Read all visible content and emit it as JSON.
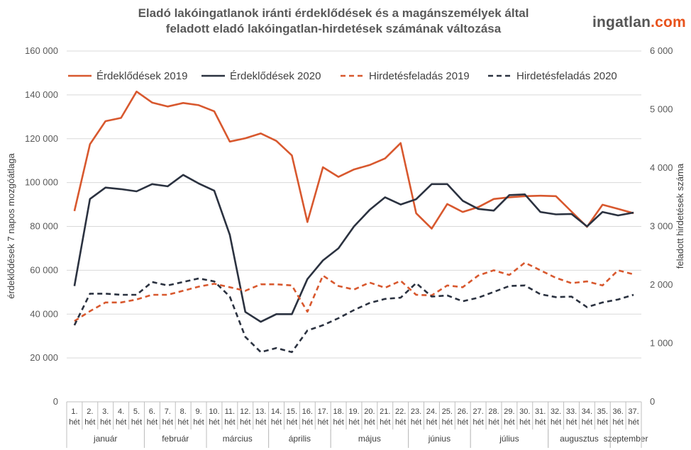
{
  "header": {
    "title_line1": "Eladó lakóingatlanok iránti érdeklődések és a magánszemélyek által",
    "title_line2": "feladott eladó lakóingatlan-hirdetések számának változása",
    "brand_main": "ingatlan",
    "brand_suffix": ".com"
  },
  "colors": {
    "orange": "#d8582e",
    "navy": "#2b3240",
    "grid": "#d9d9d9"
  },
  "chart_data": {
    "type": "line",
    "ylabel": "érdeklődések 7 napos mozgóátlaga",
    "y2label": "feladott hirdetések száma",
    "ylim": [
      0,
      160000
    ],
    "y2lim": [
      0,
      6000
    ],
    "yticks": [
      "0",
      "20 000",
      "40 000",
      "60 000",
      "80 000",
      "100 000",
      "120 000",
      "140 000",
      "160 000"
    ],
    "y2ticks": [
      "0",
      "1 000",
      "2 000",
      "3 000",
      "4 000",
      "5 000",
      "6 000"
    ],
    "grid": true,
    "legend_position": "top",
    "categories": [
      "1.",
      "2.",
      "3.",
      "4.",
      "5.",
      "6.",
      "7.",
      "8.",
      "9.",
      "10.",
      "11.",
      "12.",
      "13.",
      "14.",
      "15.",
      "16.",
      "17.",
      "18.",
      "19.",
      "20.",
      "21.",
      "22.",
      "23.",
      "24.",
      "25.",
      "26.",
      "27.",
      "28.",
      "29.",
      "30.",
      "31.",
      "32.",
      "33.",
      "34.",
      "35.",
      "36.",
      "37."
    ],
    "category_suffix": "hét",
    "months": [
      {
        "label": "január",
        "start": 0,
        "end": 4
      },
      {
        "label": "február",
        "start": 5,
        "end": 8
      },
      {
        "label": "március",
        "start": 9,
        "end": 12
      },
      {
        "label": "április",
        "start": 13,
        "end": 16
      },
      {
        "label": "május",
        "start": 17,
        "end": 21
      },
      {
        "label": "június",
        "start": 22,
        "end": 25
      },
      {
        "label": "július",
        "start": 26,
        "end": 30
      },
      {
        "label": "augusztus",
        "start": 31,
        "end": 34
      },
      {
        "label": "szeptember",
        "start": 35,
        "end": 36
      }
    ],
    "series": [
      {
        "name": "Érdeklődések 2019",
        "axis": "left",
        "style": "solid",
        "color": "#d8582e",
        "values": [
          87000,
          117500,
          128000,
          129500,
          141500,
          136500,
          134700,
          136300,
          135300,
          132500,
          118700,
          120200,
          122400,
          119000,
          112400,
          82000,
          107000,
          102600,
          106000,
          108000,
          111000,
          118000,
          86000,
          79000,
          90200,
          86600,
          88800,
          92500,
          93300,
          93800,
          94000,
          93800,
          86800,
          79800,
          89900,
          88000,
          86000
        ]
      },
      {
        "name": "Érdeklődések 2020",
        "axis": "left",
        "style": "solid",
        "color": "#2b3240",
        "values": [
          52800,
          92500,
          97700,
          97000,
          96000,
          99300,
          98300,
          103500,
          99600,
          96300,
          76200,
          41000,
          36500,
          40000,
          40000,
          56000,
          64500,
          70000,
          80000,
          87500,
          93300,
          90000,
          92400,
          99300,
          99300,
          91700,
          88000,
          87200,
          94300,
          94600,
          86600,
          85500,
          85700,
          80000,
          86600,
          85000,
          86300
        ]
      },
      {
        "name": "Hirdetésfeladás 2019",
        "axis": "right",
        "style": "dashed",
        "color": "#d8582e",
        "values": [
          1380,
          1550,
          1700,
          1700,
          1750,
          1830,
          1830,
          1900,
          1970,
          2020,
          1960,
          1900,
          2010,
          2010,
          1990,
          1540,
          2160,
          1980,
          1920,
          2040,
          1950,
          2070,
          1830,
          1820,
          1990,
          1960,
          2160,
          2250,
          2170,
          2380,
          2250,
          2120,
          2030,
          2060,
          1990,
          2250,
          2180
        ]
      },
      {
        "name": "Hirdetésfeladás 2020",
        "axis": "right",
        "style": "dashed",
        "color": "#2b3240",
        "values": [
          1310,
          1850,
          1850,
          1830,
          1830,
          2050,
          1990,
          2050,
          2110,
          2060,
          1800,
          1110,
          850,
          920,
          850,
          1220,
          1310,
          1430,
          1570,
          1690,
          1760,
          1780,
          2030,
          1800,
          1820,
          1720,
          1780,
          1880,
          1980,
          1990,
          1840,
          1790,
          1800,
          1620,
          1700,
          1750,
          1830
        ]
      }
    ]
  }
}
